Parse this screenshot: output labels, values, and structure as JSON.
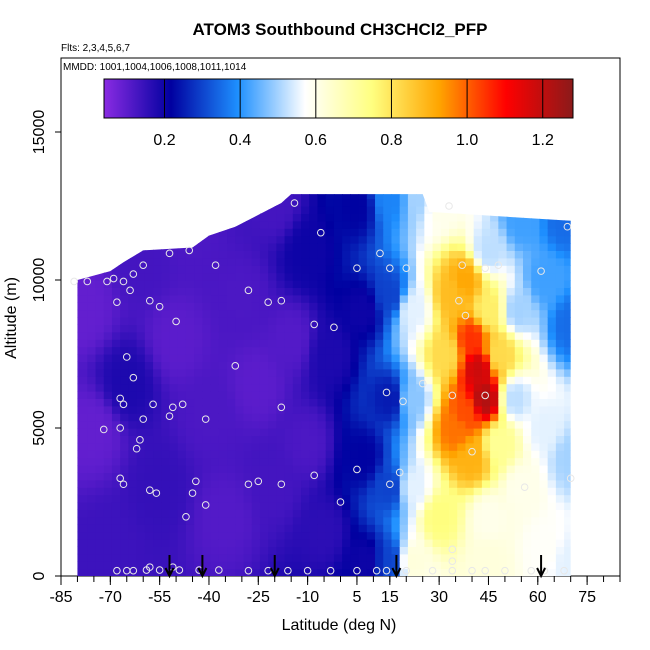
{
  "chart_data": {
    "type": "heatmap",
    "title": "ATOM3 Southbound CH3CHCl2_PFP",
    "subtitle_flights": "Flts: 2,3,4,5,6,7",
    "subtitle_dates": "MMDD: 1001,1004,1006,1008,1011,1014",
    "xlabel": "Latitude (deg N)",
    "ylabel": "Altitude (m)",
    "xlim": [
      -85,
      85
    ],
    "ylim": [
      0,
      17500
    ],
    "x_ticks": [
      -85,
      -70,
      -55,
      -40,
      -25,
      -10,
      5,
      15,
      30,
      45,
      60,
      75
    ],
    "x_tick_labels": [
      "-85",
      "-70",
      "-55",
      "-40",
      "-25",
      "-10",
      "5",
      "15",
      "30",
      "45",
      "60",
      "75"
    ],
    "y_ticks": [
      0,
      5000,
      10000,
      15000
    ],
    "y_tick_labels": [
      "0",
      "5000",
      "10000",
      "15000"
    ],
    "colorbar": {
      "range": [
        0.04,
        1.28
      ],
      "ticks": [
        0.2,
        0.4,
        0.6,
        0.8,
        1.0,
        1.2
      ],
      "tick_labels": [
        "0.2",
        "0.4",
        "0.6",
        "0.8",
        "1.0",
        "1.2"
      ],
      "colors": [
        "#8a2be2",
        "#0000a0",
        "#1e90ff",
        "#ffffff",
        "#ffff80",
        "#ffa500",
        "#ff0000",
        "#8b1a1a"
      ]
    },
    "field_points": [
      {
        "lat": -78,
        "alt": 9000,
        "value": 0.09
      },
      {
        "lat": -75,
        "alt": 5000,
        "value": 0.09
      },
      {
        "lat": -70,
        "alt": 1000,
        "value": 0.14
      },
      {
        "lat": -65,
        "alt": 6500,
        "value": 0.18
      },
      {
        "lat": -60,
        "alt": 10500,
        "value": 0.13
      },
      {
        "lat": -55,
        "alt": 3000,
        "value": 0.15
      },
      {
        "lat": -50,
        "alt": 8000,
        "value": 0.1
      },
      {
        "lat": -45,
        "alt": 11500,
        "value": 0.12
      },
      {
        "lat": -40,
        "alt": 5500,
        "value": 0.12
      },
      {
        "lat": -35,
        "alt": 2000,
        "value": 0.11
      },
      {
        "lat": -30,
        "alt": 9500,
        "value": 0.12
      },
      {
        "lat": -25,
        "alt": 6500,
        "value": 0.1
      },
      {
        "lat": -20,
        "alt": 12500,
        "value": 0.13
      },
      {
        "lat": -20,
        "alt": 3000,
        "value": 0.13
      },
      {
        "lat": -15,
        "alt": 8000,
        "value": 0.11
      },
      {
        "lat": -10,
        "alt": 11000,
        "value": 0.2
      },
      {
        "lat": -10,
        "alt": 4500,
        "value": 0.12
      },
      {
        "lat": -5,
        "alt": 1500,
        "value": 0.16
      },
      {
        "lat": -3,
        "alt": 7500,
        "value": 0.18
      },
      {
        "lat": 5,
        "alt": 12500,
        "value": 0.22
      },
      {
        "lat": 7,
        "alt": 9000,
        "value": 0.2
      },
      {
        "lat": 7,
        "alt": 4000,
        "value": 0.22
      },
      {
        "lat": 8,
        "alt": 500,
        "value": 0.2
      },
      {
        "lat": 15,
        "alt": 12800,
        "value": 0.38
      },
      {
        "lat": 15,
        "alt": 9500,
        "value": 0.3
      },
      {
        "lat": 15,
        "alt": 6000,
        "value": 0.25
      },
      {
        "lat": 15,
        "alt": 3000,
        "value": 0.3
      },
      {
        "lat": 15,
        "alt": 500,
        "value": 0.3
      },
      {
        "lat": 24,
        "alt": 12800,
        "value": 0.5
      },
      {
        "lat": 22,
        "alt": 9000,
        "value": 0.55
      },
      {
        "lat": 22,
        "alt": 6000,
        "value": 0.48
      },
      {
        "lat": 22,
        "alt": 3000,
        "value": 0.55
      },
      {
        "lat": 22,
        "alt": 500,
        "value": 0.62
      },
      {
        "lat": 30,
        "alt": 12500,
        "value": 0.6
      },
      {
        "lat": 32,
        "alt": 7500,
        "value": 0.82
      },
      {
        "lat": 30,
        "alt": 2000,
        "value": 0.75
      },
      {
        "lat": 34,
        "alt": 9500,
        "value": 0.88
      },
      {
        "lat": 35,
        "alt": 5000,
        "value": 0.98
      },
      {
        "lat": 38,
        "alt": 10000,
        "value": 0.92
      },
      {
        "lat": 40,
        "alt": 8000,
        "value": 1.05
      },
      {
        "lat": 38,
        "alt": 5500,
        "value": 1.02
      },
      {
        "lat": 40,
        "alt": 4000,
        "value": 0.9
      },
      {
        "lat": 42,
        "alt": 7000,
        "value": 1.18
      },
      {
        "lat": 44,
        "alt": 6000,
        "value": 1.22
      },
      {
        "lat": 45,
        "alt": 9000,
        "value": 0.78
      },
      {
        "lat": 45,
        "alt": 11000,
        "value": 0.52
      },
      {
        "lat": 45,
        "alt": 2000,
        "value": 0.6
      },
      {
        "lat": 45,
        "alt": 500,
        "value": 0.62
      },
      {
        "lat": 48,
        "alt": 7500,
        "value": 0.82
      },
      {
        "lat": 48,
        "alt": 4500,
        "value": 0.72
      },
      {
        "lat": 54,
        "alt": 9000,
        "value": 0.5
      },
      {
        "lat": 53,
        "alt": 6000,
        "value": 0.52
      },
      {
        "lat": 55,
        "alt": 3000,
        "value": 0.6
      },
      {
        "lat": 55,
        "alt": 12000,
        "value": 0.42
      },
      {
        "lat": 62,
        "alt": 10000,
        "value": 0.42
      },
      {
        "lat": 62,
        "alt": 5000,
        "value": 0.55
      },
      {
        "lat": 62,
        "alt": 1000,
        "value": 0.58
      },
      {
        "lat": 68,
        "alt": 12000,
        "value": 0.35
      },
      {
        "lat": 70,
        "alt": 8500,
        "value": 0.35
      },
      {
        "lat": 70,
        "alt": 4000,
        "value": 0.5
      },
      {
        "lat": 70,
        "alt": 500,
        "value": 0.55
      }
    ],
    "coverage": [
      {
        "lat": -80,
        "alt_max": 10000
      },
      {
        "lat": -70,
        "alt_max": 10300
      },
      {
        "lat": -66,
        "alt_max": 10600
      },
      {
        "lat": -60,
        "alt_max": 11000
      },
      {
        "lat": -45,
        "alt_max": 11100
      },
      {
        "lat": -40,
        "alt_max": 11500
      },
      {
        "lat": -32,
        "alt_max": 11800
      },
      {
        "lat": -25,
        "alt_max": 12200
      },
      {
        "lat": -18,
        "alt_max": 12600
      },
      {
        "lat": -15,
        "alt_max": 12900
      },
      {
        "lat": 25,
        "alt_max": 12900
      },
      {
        "lat": 27,
        "alt_max": 12300
      },
      {
        "lat": 70,
        "alt_max": 12000
      }
    ],
    "sample_points": [
      {
        "lat": -81,
        "alt": 9950
      },
      {
        "lat": -77,
        "alt": 9950
      },
      {
        "lat": -71,
        "alt": 9950
      },
      {
        "lat": -69,
        "alt": 10050
      },
      {
        "lat": -66,
        "alt": 9950
      },
      {
        "lat": -68,
        "alt": 9250
      },
      {
        "lat": -64,
        "alt": 9650
      },
      {
        "lat": -63,
        "alt": 10200
      },
      {
        "lat": -60,
        "alt": 10500
      },
      {
        "lat": -58,
        "alt": 9300
      },
      {
        "lat": -55,
        "alt": 9100
      },
      {
        "lat": -52,
        "alt": 10900
      },
      {
        "lat": -46,
        "alt": 11000
      },
      {
        "lat": -50,
        "alt": 8600
      },
      {
        "lat": -38,
        "alt": 10500
      },
      {
        "lat": -28,
        "alt": 9650
      },
      {
        "lat": -22,
        "alt": 9250
      },
      {
        "lat": -18,
        "alt": 9300
      },
      {
        "lat": -14,
        "alt": 12600
      },
      {
        "lat": -6,
        "alt": 11600
      },
      {
        "lat": -8,
        "alt": 8500
      },
      {
        "lat": -2,
        "alt": 8400
      },
      {
        "lat": 5,
        "alt": 10400
      },
      {
        "lat": 12,
        "alt": 10900
      },
      {
        "lat": 15,
        "alt": 10400
      },
      {
        "lat": 20,
        "alt": 10400
      },
      {
        "lat": 33,
        "alt": 12500
      },
      {
        "lat": 37,
        "alt": 10500
      },
      {
        "lat": 44,
        "alt": 10400
      },
      {
        "lat": 48,
        "alt": 10500
      },
      {
        "lat": 61,
        "alt": 10300
      },
      {
        "lat": 69,
        "alt": 11800
      },
      {
        "lat": 36,
        "alt": 9300
      },
      {
        "lat": 38,
        "alt": 8800
      },
      {
        "lat": -65,
        "alt": 7400
      },
      {
        "lat": -63,
        "alt": 6700
      },
      {
        "lat": -67,
        "alt": 6000
      },
      {
        "lat": -66,
        "alt": 5800
      },
      {
        "lat": -60,
        "alt": 5300
      },
      {
        "lat": -57,
        "alt": 5800
      },
      {
        "lat": -51,
        "alt": 5700
      },
      {
        "lat": -48,
        "alt": 5800
      },
      {
        "lat": -52,
        "alt": 5400
      },
      {
        "lat": -41,
        "alt": 5300
      },
      {
        "lat": -32,
        "alt": 7100
      },
      {
        "lat": -18,
        "alt": 5700
      },
      {
        "lat": 14,
        "alt": 6200
      },
      {
        "lat": 19,
        "alt": 5900
      },
      {
        "lat": 25,
        "alt": 6500
      },
      {
        "lat": 34,
        "alt": 6100
      },
      {
        "lat": 44,
        "alt": 6100
      },
      {
        "lat": -72,
        "alt": 4950
      },
      {
        "lat": -67,
        "alt": 5000
      },
      {
        "lat": -61,
        "alt": 4600
      },
      {
        "lat": -62,
        "alt": 4300
      },
      {
        "lat": 5,
        "alt": 3600
      },
      {
        "lat": 18,
        "alt": 3500
      },
      {
        "lat": 40,
        "alt": 4200
      },
      {
        "lat": -67,
        "alt": 3300
      },
      {
        "lat": -66,
        "alt": 3100
      },
      {
        "lat": -58,
        "alt": 2900
      },
      {
        "lat": -56,
        "alt": 2800
      },
      {
        "lat": -44,
        "alt": 3200
      },
      {
        "lat": -45,
        "alt": 2800
      },
      {
        "lat": -47,
        "alt": 2000
      },
      {
        "lat": -41,
        "alt": 2400
      },
      {
        "lat": -28,
        "alt": 3100
      },
      {
        "lat": -25,
        "alt": 3200
      },
      {
        "lat": -18,
        "alt": 3100
      },
      {
        "lat": -8,
        "alt": 3400
      },
      {
        "lat": 0,
        "alt": 2500
      },
      {
        "lat": 15,
        "alt": 3100
      },
      {
        "lat": 56,
        "alt": 3000
      },
      {
        "lat": 70,
        "alt": 3300
      },
      {
        "lat": -68,
        "alt": 180
      },
      {
        "lat": -65,
        "alt": 180
      },
      {
        "lat": -63,
        "alt": 180
      },
      {
        "lat": -59,
        "alt": 200
      },
      {
        "lat": -58,
        "alt": 300
      },
      {
        "lat": -55,
        "alt": 200
      },
      {
        "lat": -51,
        "alt": 300
      },
      {
        "lat": -49,
        "alt": 200
      },
      {
        "lat": -43,
        "alt": 200
      },
      {
        "lat": -37,
        "alt": 200
      },
      {
        "lat": -28,
        "alt": 180
      },
      {
        "lat": -22,
        "alt": 180
      },
      {
        "lat": -16,
        "alt": 180
      },
      {
        "lat": -10,
        "alt": 180
      },
      {
        "lat": -3,
        "alt": 180
      },
      {
        "lat": 5,
        "alt": 180
      },
      {
        "lat": 11,
        "alt": 180
      },
      {
        "lat": 14,
        "alt": 180
      },
      {
        "lat": 20,
        "alt": 180
      },
      {
        "lat": 28,
        "alt": 180
      },
      {
        "lat": 34,
        "alt": 180
      },
      {
        "lat": 34,
        "alt": 500
      },
      {
        "lat": 34,
        "alt": 900
      },
      {
        "lat": 40,
        "alt": 180
      },
      {
        "lat": 44,
        "alt": 180
      },
      {
        "lat": 50,
        "alt": 180
      },
      {
        "lat": 58,
        "alt": 180
      },
      {
        "lat": 62,
        "alt": 180
      },
      {
        "lat": 68,
        "alt": 180
      }
    ],
    "arrow_latitudes": [
      -52,
      -42,
      -20,
      17,
      61
    ]
  }
}
